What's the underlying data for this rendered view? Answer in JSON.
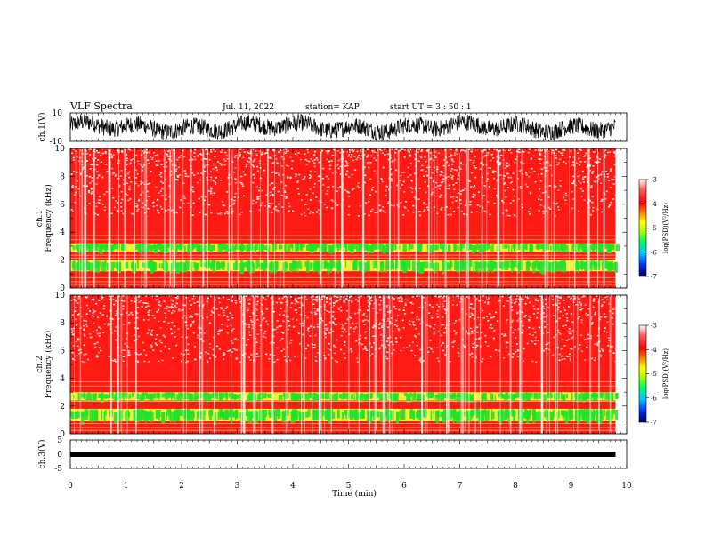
{
  "header": {
    "title": "VLF Spectra",
    "date": "Jul. 11, 2022",
    "station": "station= KAP",
    "start": "start UT =  3 : 50 : 1"
  },
  "colors": {
    "spectrogram_base": "#ff1a14",
    "band": "#22e02a",
    "band_mix": "#f4f030",
    "white_gap": "#ffffff",
    "waveform": "#000000"
  },
  "chart_data": [
    {
      "type": "line",
      "name": "ch1-waveform",
      "ylabel": "ch.1(V)",
      "yticks": [
        "10",
        "-10"
      ],
      "ylim": [
        -10,
        10
      ],
      "xlim": [
        0,
        10
      ],
      "data_extent_min": 9.8,
      "description": "noisy waveform oscillating roughly between -7 and +7 V"
    },
    {
      "type": "heatmap",
      "name": "ch1-spectrogram",
      "ylabel": "Frequency (kHz)",
      "channel_label": "ch.1",
      "yticks": [
        "0",
        "2",
        "4",
        "6",
        "8",
        "10"
      ],
      "ylim": [
        0,
        10
      ],
      "xlim": [
        0,
        10
      ],
      "data_extent_min": 9.8,
      "bands_khz": [
        [
          2.6,
          3.2
        ],
        [
          1.2,
          2.0
        ]
      ],
      "colorbar": {
        "label": "log(PSD)(V²/Hz)",
        "ticks": [
          "-3",
          "-4",
          "-5",
          "-6",
          "-7"
        ],
        "range": [
          -7,
          -3
        ],
        "colors": [
          "#000060",
          "#0030ff",
          "#00c8ff",
          "#00ff60",
          "#a0ff00",
          "#ffff00",
          "#ff8000",
          "#ff0000",
          "#ff6060",
          "#ffffff"
        ]
      }
    },
    {
      "type": "heatmap",
      "name": "ch2-spectrogram",
      "ylabel": "Frequency (kHz)",
      "channel_label": "ch.2",
      "yticks": [
        "0",
        "2",
        "4",
        "6",
        "8",
        "10"
      ],
      "ylim": [
        0,
        10
      ],
      "xlim": [
        0,
        10
      ],
      "data_extent_min": 9.8,
      "bands_khz": [
        [
          2.4,
          3.0
        ],
        [
          0.9,
          1.8
        ]
      ],
      "colorbar": {
        "label": "log(PSD)(V²/Hz)",
        "ticks": [
          "-3",
          "-4",
          "-5",
          "-6",
          "-7"
        ],
        "range": [
          -7,
          -3
        ],
        "colors": [
          "#000060",
          "#0030ff",
          "#00c8ff",
          "#00ff60",
          "#a0ff00",
          "#ffff00",
          "#ff8000",
          "#ff0000",
          "#ff6060",
          "#ffffff"
        ]
      }
    },
    {
      "type": "line",
      "name": "ch3-waveform",
      "ylabel": "ch.3(V)",
      "yticks": [
        "5",
        "0",
        "-5"
      ],
      "ylim": [
        -5,
        5
      ],
      "xlim": [
        0,
        10
      ],
      "data_extent_min": 9.8,
      "baseline": 0,
      "description": "flat thick trace near 0 V"
    }
  ],
  "xaxis": {
    "label": "Time (min)",
    "ticks": [
      "0",
      "1",
      "2",
      "3",
      "4",
      "5",
      "6",
      "7",
      "8",
      "9",
      "10"
    ]
  }
}
